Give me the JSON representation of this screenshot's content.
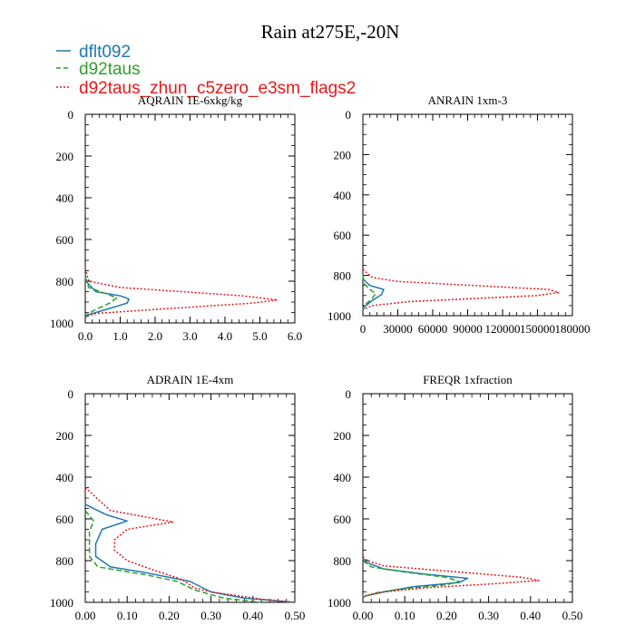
{
  "figure": {
    "title": "Rain at275E,-20N"
  },
  "legend": {
    "placement": "top-left",
    "entries": [
      {
        "label": "dflt092",
        "color": "#1f77b4",
        "dash": "solid"
      },
      {
        "label": "d92taus",
        "color": "#2ca02c",
        "dash": "dashed"
      },
      {
        "label": "d92taus_zhun_c5zero_e3sm_flags2",
        "color": "#e41a1c",
        "dash": "dotted"
      }
    ]
  },
  "chart_data": [
    {
      "type": "line",
      "title": "AQRAIN  1E-6xkg/kg",
      "xlabel": "",
      "ylabel": "",
      "xlim": [
        0,
        6
      ],
      "ylim": [
        1000,
        0
      ],
      "xticks": [
        0,
        1,
        2,
        3,
        4,
        5,
        6
      ],
      "xtick_labels": [
        "0.0",
        "1.0",
        "2.0",
        "3.0",
        "4.0",
        "5.0",
        "6.0"
      ],
      "yticks": [
        0,
        200,
        400,
        600,
        800,
        1000
      ],
      "ytick_labels": [
        "0",
        "200",
        "400",
        "600",
        "800",
        "1000"
      ],
      "grid": false,
      "series": [
        {
          "name": "dflt092",
          "points": [
            [
              0,
              760
            ],
            [
              0.02,
              800
            ],
            [
              0.3,
              850
            ],
            [
              1.0,
              870
            ],
            [
              1.25,
              885
            ],
            [
              1.2,
              905
            ],
            [
              0.6,
              935
            ],
            [
              0.1,
              960
            ],
            [
              0,
              975
            ]
          ]
        },
        {
          "name": "d92taus",
          "points": [
            [
              0,
              780
            ],
            [
              0.1,
              830
            ],
            [
              0.6,
              860
            ],
            [
              0.9,
              880
            ],
            [
              0.7,
              905
            ],
            [
              0.3,
              935
            ],
            [
              0.05,
              960
            ],
            [
              0,
              975
            ]
          ]
        },
        {
          "name": "d92taus_zhun_c5zero_e3sm_flags2",
          "points": [
            [
              0,
              740
            ],
            [
              0.1,
              800
            ],
            [
              1.0,
              830
            ],
            [
              4.5,
              870
            ],
            [
              5.5,
              890
            ],
            [
              4.8,
              905
            ],
            [
              2.0,
              935
            ],
            [
              0.3,
              955
            ],
            [
              0,
              970
            ]
          ]
        }
      ]
    },
    {
      "type": "line",
      "title": "ANRAIN  1xm-3",
      "xlabel": "",
      "ylabel": "",
      "xlim": [
        0,
        180000
      ],
      "ylim": [
        1000,
        0
      ],
      "xticks": [
        0,
        30000,
        60000,
        90000,
        120000,
        150000,
        180000
      ],
      "xtick_labels": [
        "0",
        "30000",
        "60000",
        "90000",
        "120000",
        "150000",
        "180000"
      ],
      "yticks": [
        0,
        200,
        400,
        600,
        800,
        1000
      ],
      "ytick_labels": [
        "0",
        "200",
        "400",
        "600",
        "800",
        "1000"
      ],
      "grid": false,
      "series": [
        {
          "name": "dflt092",
          "points": [
            [
              0,
              790
            ],
            [
              500,
              820
            ],
            [
              6000,
              850
            ],
            [
              18000,
              870
            ],
            [
              16000,
              895
            ],
            [
              8000,
              925
            ],
            [
              1500,
              955
            ],
            [
              0,
              975
            ]
          ]
        },
        {
          "name": "d92taus",
          "points": [
            [
              0,
              800
            ],
            [
              1000,
              840
            ],
            [
              6000,
              870
            ],
            [
              11000,
              890
            ],
            [
              8000,
              915
            ],
            [
              3000,
              940
            ],
            [
              500,
              960
            ],
            [
              0,
              975
            ]
          ]
        },
        {
          "name": "d92taus_zhun_c5zero_e3sm_flags2",
          "points": [
            [
              0,
              770
            ],
            [
              8000,
              810
            ],
            [
              30000,
              830
            ],
            [
              160000,
              870
            ],
            [
              168000,
              885
            ],
            [
              150000,
              900
            ],
            [
              40000,
              930
            ],
            [
              8000,
              950
            ],
            [
              0,
              970
            ]
          ]
        }
      ]
    },
    {
      "type": "line",
      "title": "ADRAIN  1E-4xm",
      "xlabel": "",
      "ylabel": "",
      "xlim": [
        0,
        0.5
      ],
      "ylim": [
        1000,
        0
      ],
      "xticks": [
        0,
        0.1,
        0.2,
        0.3,
        0.4,
        0.5
      ],
      "xtick_labels": [
        "0.00",
        "0.10",
        "0.20",
        "0.30",
        "0.40",
        "0.50"
      ],
      "yticks": [
        0,
        200,
        400,
        600,
        800,
        1000
      ],
      "ytick_labels": [
        "0",
        "200",
        "400",
        "600",
        "800",
        "1000"
      ],
      "grid": false,
      "series": [
        {
          "name": "dflt092",
          "points": [
            [
              0,
              530
            ],
            [
              0.05,
              580
            ],
            [
              0.1,
              610
            ],
            [
              0.04,
              650
            ],
            [
              0.025,
              720
            ],
            [
              0.025,
              780
            ],
            [
              0.06,
              830
            ],
            [
              0.15,
              860
            ],
            [
              0.25,
              900
            ],
            [
              0.3,
              950
            ],
            [
              0.38,
              980
            ],
            [
              0.5,
              1000
            ]
          ]
        },
        {
          "name": "d92taus",
          "points": [
            [
              0,
              560
            ],
            [
              0.02,
              610
            ],
            [
              0.01,
              660
            ],
            [
              0.01,
              720
            ],
            [
              0.01,
              780
            ],
            [
              0.03,
              830
            ],
            [
              0.15,
              870
            ],
            [
              0.22,
              900
            ],
            [
              0.26,
              940
            ],
            [
              0.33,
              980
            ],
            [
              0.42,
              1000
            ]
          ]
        },
        {
          "name": "d92taus_zhun_c5zero_e3sm_flags2",
          "points": [
            [
              0,
              450
            ],
            [
              0.06,
              560
            ],
            [
              0.21,
              615
            ],
            [
              0.1,
              650
            ],
            [
              0.07,
              700
            ],
            [
              0.07,
              750
            ],
            [
              0.1,
              800
            ],
            [
              0.17,
              850
            ],
            [
              0.23,
              890
            ],
            [
              0.26,
              930
            ],
            [
              0.3,
              950
            ],
            [
              0.42,
              985
            ],
            [
              0.5,
              1000
            ]
          ]
        }
      ]
    },
    {
      "type": "line",
      "title": "FREQR  1xfraction",
      "xlabel": "",
      "ylabel": "",
      "xlim": [
        0,
        0.5
      ],
      "ylim": [
        1000,
        0
      ],
      "xticks": [
        0,
        0.1,
        0.2,
        0.3,
        0.4,
        0.5
      ],
      "xtick_labels": [
        "0.00",
        "0.10",
        "0.20",
        "0.30",
        "0.40",
        "0.50"
      ],
      "yticks": [
        0,
        200,
        400,
        600,
        800,
        1000
      ],
      "ytick_labels": [
        "0",
        "200",
        "400",
        "600",
        "800",
        "1000"
      ],
      "grid": false,
      "series": [
        {
          "name": "dflt092",
          "points": [
            [
              0,
              790
            ],
            [
              0.01,
              810
            ],
            [
              0.05,
              840
            ],
            [
              0.15,
              865
            ],
            [
              0.25,
              885
            ],
            [
              0.23,
              905
            ],
            [
              0.12,
              925
            ],
            [
              0.05,
              950
            ],
            [
              0.005,
              970
            ],
            [
              0,
              980
            ]
          ]
        },
        {
          "name": "d92taus",
          "points": [
            [
              0,
              800
            ],
            [
              0.02,
              830
            ],
            [
              0.1,
              855
            ],
            [
              0.2,
              880
            ],
            [
              0.23,
              900
            ],
            [
              0.2,
              915
            ],
            [
              0.1,
              935
            ],
            [
              0.03,
              955
            ],
            [
              0,
              975
            ]
          ]
        },
        {
          "name": "d92taus_zhun_c5zero_e3sm_flags2",
          "points": [
            [
              0,
              780
            ],
            [
              0.01,
              800
            ],
            [
              0.05,
              825
            ],
            [
              0.2,
              850
            ],
            [
              0.38,
              880
            ],
            [
              0.42,
              895
            ],
            [
              0.32,
              910
            ],
            [
              0.15,
              930
            ],
            [
              0.05,
              950
            ],
            [
              0,
              970
            ]
          ]
        }
      ]
    }
  ]
}
